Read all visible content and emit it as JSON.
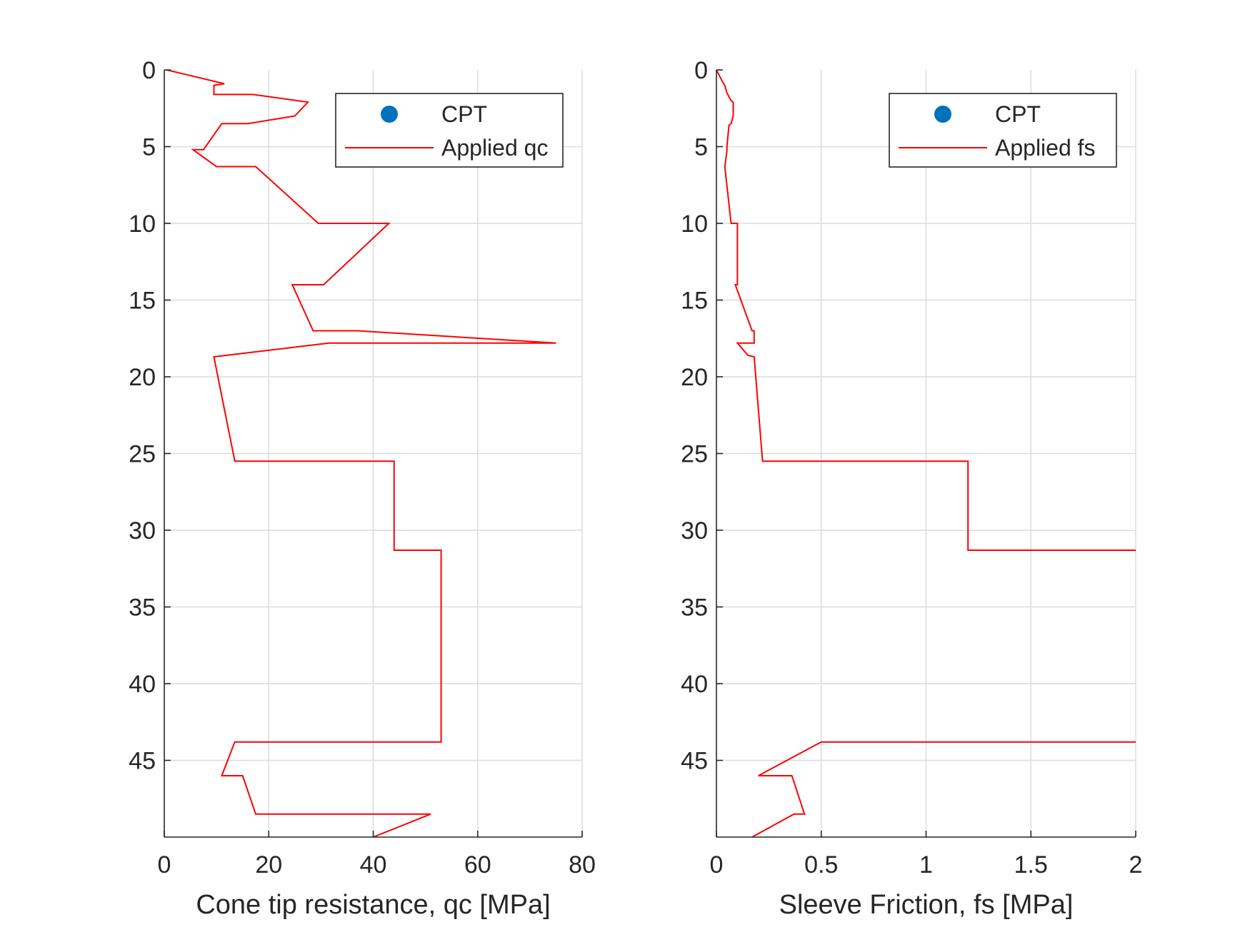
{
  "chart_data": [
    {
      "type": "line",
      "xlabel": "Cone tip resistance, qc [MPa]",
      "ylabel": "",
      "xlim": [
        0,
        80
      ],
      "ylim": [
        0,
        50
      ],
      "y_reversed": true,
      "x_ticks": [
        0,
        20,
        40,
        60,
        80
      ],
      "y_ticks": [
        0,
        5,
        10,
        15,
        20,
        25,
        30,
        35,
        40,
        45
      ],
      "grid": true,
      "legend_position": "top-right",
      "legend": [
        {
          "label": "CPT",
          "marker": "circle",
          "color": "#0072BD"
        },
        {
          "label": "Applied qc",
          "marker": "line",
          "color": "#FF0000"
        }
      ],
      "series": [
        {
          "name": "Applied qc",
          "color": "#FF0000",
          "points": [
            [
              0.5,
              0
            ],
            [
              11.5,
              0.9
            ],
            [
              9.5,
              1.0
            ],
            [
              9.5,
              1.6
            ],
            [
              17,
              1.6
            ],
            [
              27.5,
              2.1
            ],
            [
              25,
              3.0
            ],
            [
              16,
              3.5
            ],
            [
              11,
              3.5
            ],
            [
              7.5,
              5.2
            ],
            [
              5.5,
              5.2
            ],
            [
              10,
              6.3
            ],
            [
              17.5,
              6.3
            ],
            [
              29.5,
              10.0
            ],
            [
              43,
              10.0
            ],
            [
              30.5,
              14.0
            ],
            [
              24.5,
              14.0
            ],
            [
              28.5,
              17.0
            ],
            [
              37,
              17.0
            ],
            [
              75,
              17.8
            ],
            [
              31.5,
              17.8
            ],
            [
              9.5,
              18.7
            ],
            [
              13.5,
              25.5
            ],
            [
              44,
              25.5
            ],
            [
              44,
              31.3
            ],
            [
              53,
              31.3
            ],
            [
              53,
              43.8
            ],
            [
              13.5,
              43.8
            ],
            [
              11,
              46.0
            ],
            [
              15,
              46.0
            ],
            [
              17.5,
              48.5
            ],
            [
              51,
              48.5
            ],
            [
              40,
              50
            ]
          ]
        }
      ]
    },
    {
      "type": "line",
      "xlabel": "Sleeve Friction, fs [MPa]",
      "ylabel": "",
      "xlim": [
        0,
        2
      ],
      "ylim": [
        0,
        50
      ],
      "y_reversed": true,
      "x_ticks": [
        0,
        0.5,
        1,
        1.5,
        2
      ],
      "x_tick_labels": [
        "0",
        "0.5",
        "1",
        "1.5",
        "2"
      ],
      "y_ticks": [
        0,
        5,
        10,
        15,
        20,
        25,
        30,
        35,
        40,
        45
      ],
      "grid": true,
      "legend_position": "top-right",
      "legend": [
        {
          "label": "CPT",
          "marker": "circle",
          "color": "#0072BD"
        },
        {
          "label": "Applied fs",
          "marker": "line",
          "color": "#FF0000"
        }
      ],
      "series": [
        {
          "name": "Applied fs",
          "color": "#FF0000",
          "points": [
            [
              0.0,
              0
            ],
            [
              0.03,
              0.8
            ],
            [
              0.04,
              1.0
            ],
            [
              0.05,
              1.5
            ],
            [
              0.07,
              2.0
            ],
            [
              0.08,
              2.1
            ],
            [
              0.08,
              3.0
            ],
            [
              0.07,
              3.5
            ],
            [
              0.06,
              3.6
            ],
            [
              0.05,
              5.0
            ],
            [
              0.05,
              5.3
            ],
            [
              0.04,
              6.3
            ],
            [
              0.07,
              10.0
            ],
            [
              0.1,
              10.0
            ],
            [
              0.1,
              14.0
            ],
            [
              0.09,
              14.0
            ],
            [
              0.17,
              17.0
            ],
            [
              0.18,
              17.0
            ],
            [
              0.18,
              17.8
            ],
            [
              0.1,
              17.8
            ],
            [
              0.15,
              18.6
            ],
            [
              0.18,
              18.7
            ],
            [
              0.22,
              25.5
            ],
            [
              1.2,
              25.5
            ],
            [
              1.2,
              31.3
            ],
            [
              2.0,
              31.3
            ]
          ]
        },
        {
          "name": "Applied fs",
          "color": "#FF0000",
          "points": [
            [
              2.0,
              43.8
            ],
            [
              0.5,
              43.8
            ],
            [
              0.2,
              46.0
            ],
            [
              0.36,
              46.0
            ],
            [
              0.42,
              48.5
            ],
            [
              0.37,
              48.5
            ],
            [
              0.17,
              50
            ]
          ]
        }
      ]
    }
  ]
}
